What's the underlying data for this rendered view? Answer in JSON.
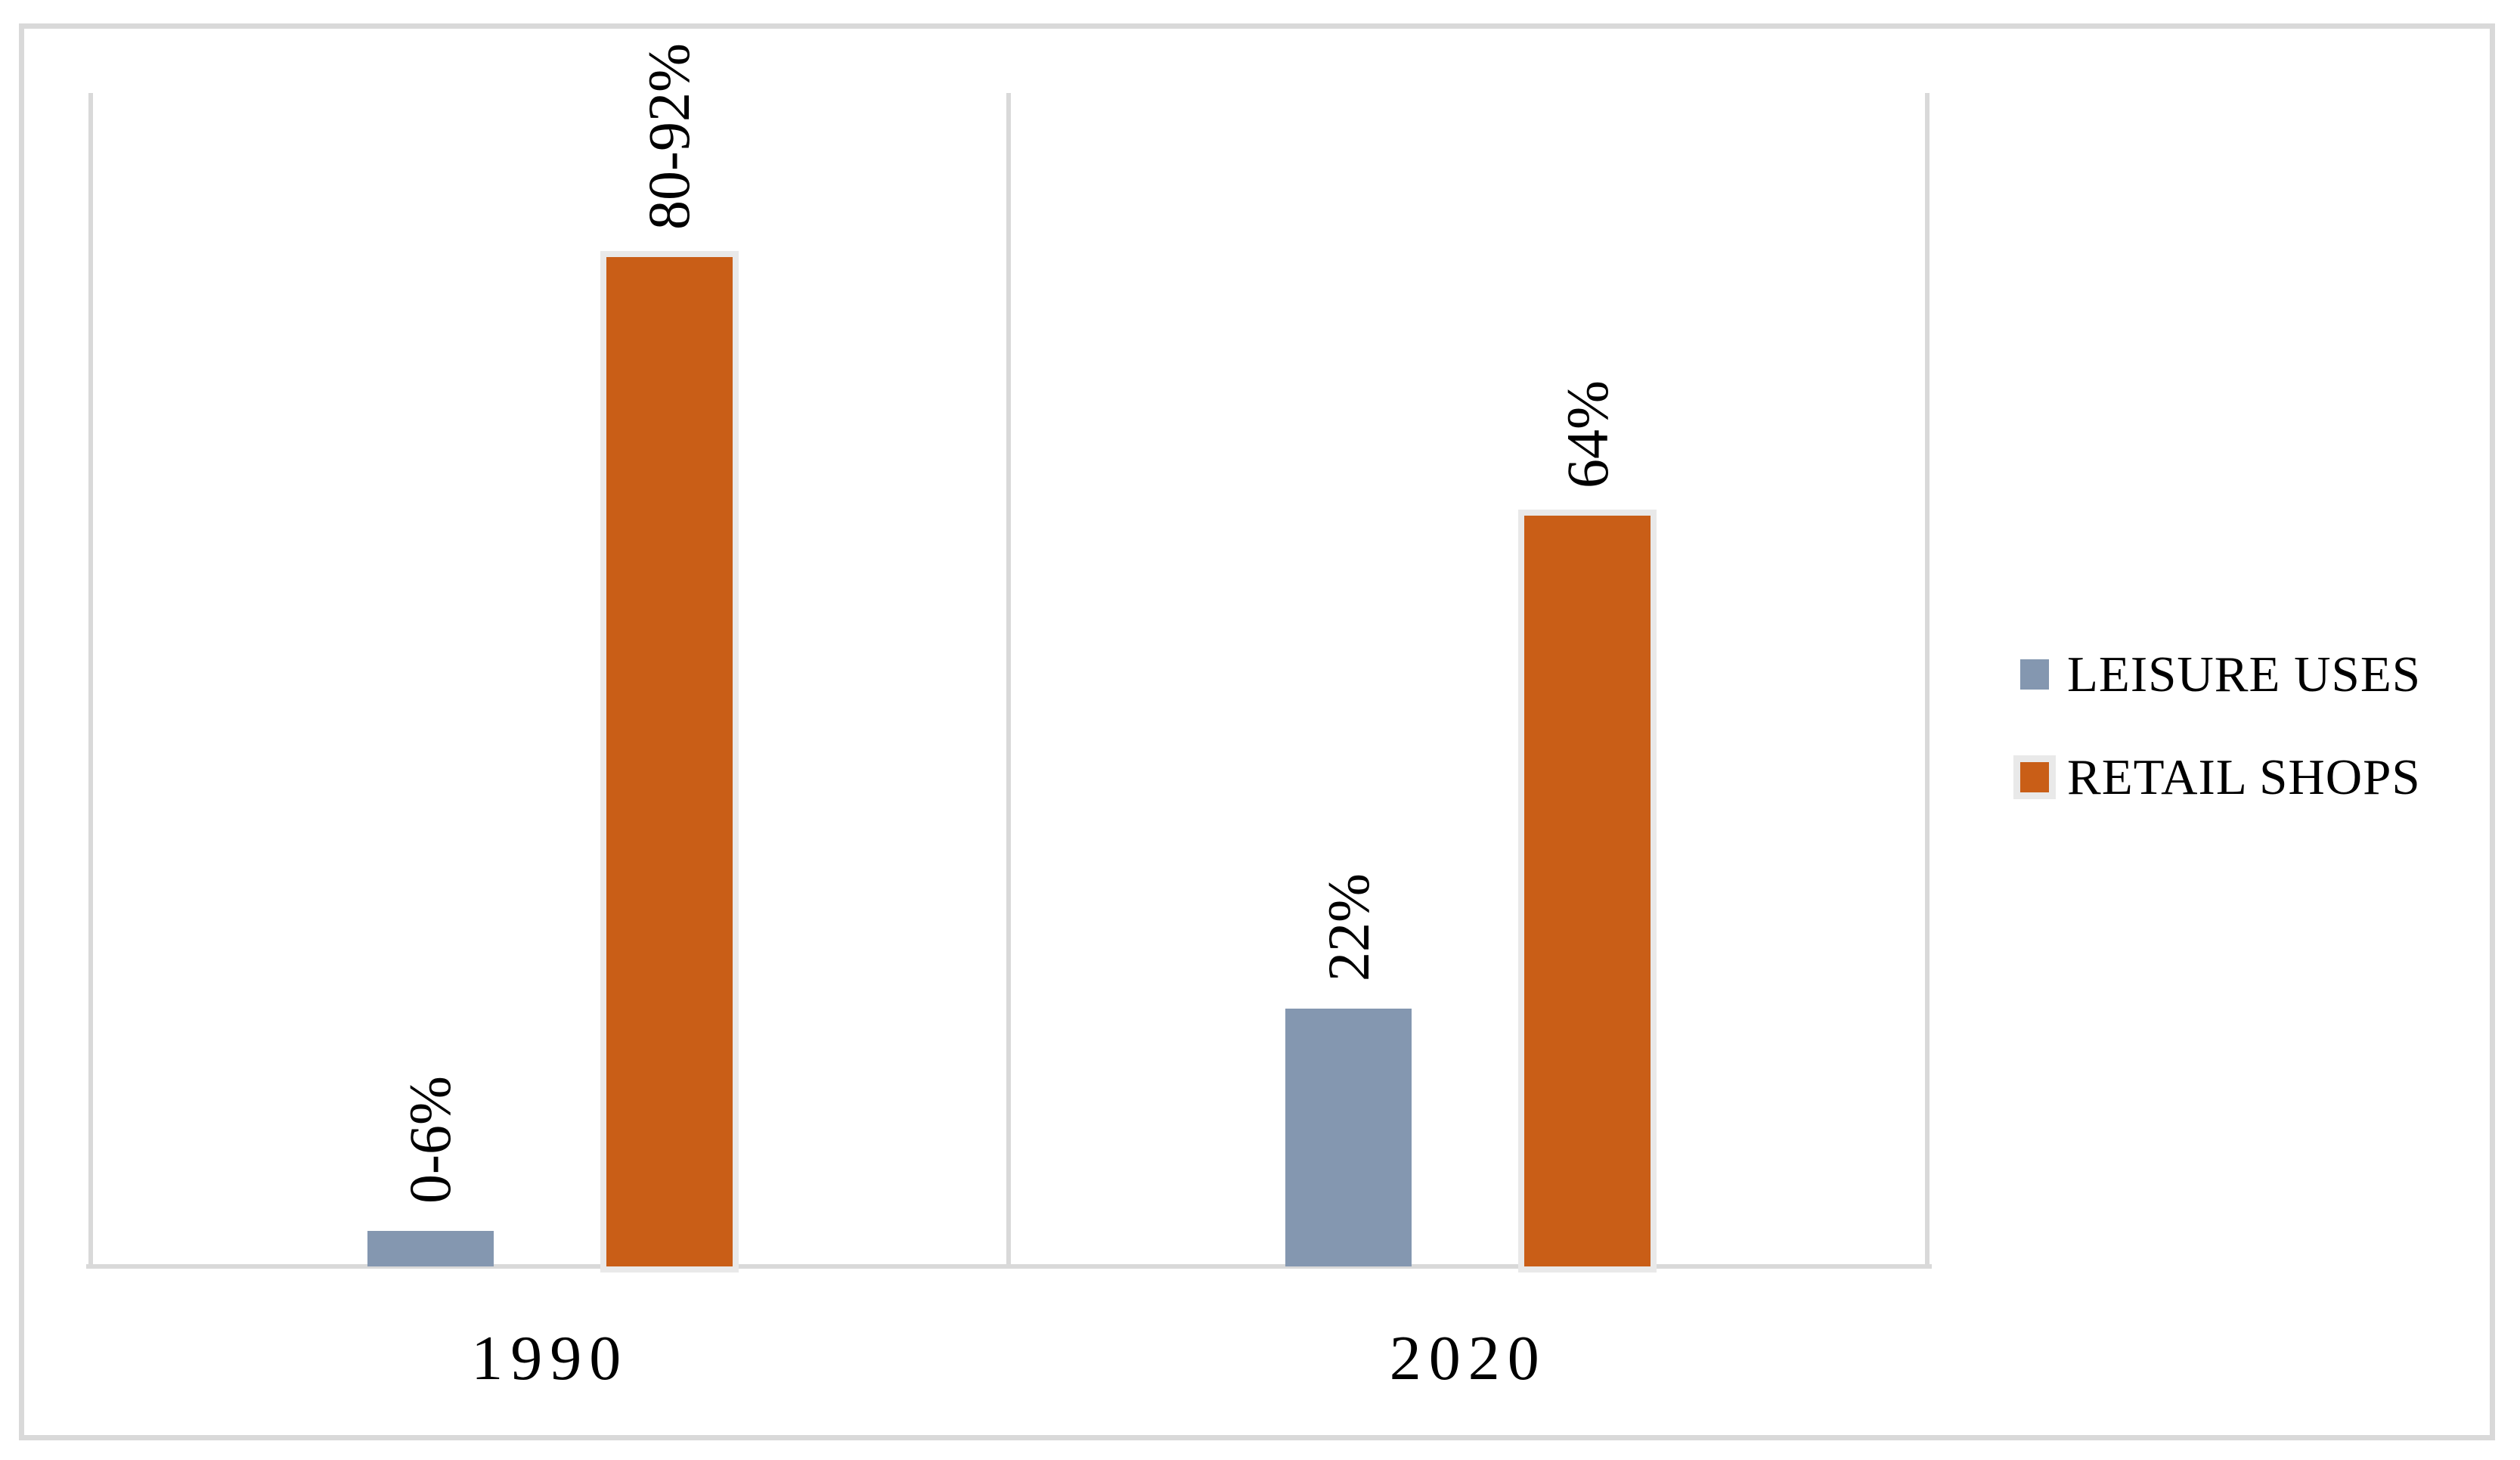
{
  "figure": {
    "background_color": "#ffffff",
    "border_color": "#d9d9d9",
    "axis_color": "#d9d9d9",
    "bar_outline_color": "#e9e9e9",
    "text_color": "#000000"
  },
  "chart_data": {
    "type": "bar",
    "title": "",
    "xlabel": "",
    "ylabel": "",
    "categories": [
      "1990",
      "2020"
    ],
    "series": [
      {
        "name": "LEISURE USES",
        "color": "#8497B0",
        "values": [
          3,
          22
        ],
        "labels": [
          "0-6%",
          "22%"
        ]
      },
      {
        "name": "RETAIL SHOPS",
        "color": "#C95E17",
        "values": [
          86,
          64
        ],
        "labels": [
          "80-92%",
          "64%"
        ]
      }
    ],
    "ylim": [
      0,
      100
    ],
    "y_axis_ticks_visible": false,
    "grid": "vertical category boundary lines only",
    "legend_position": "right",
    "data_label_rotation": -90
  }
}
